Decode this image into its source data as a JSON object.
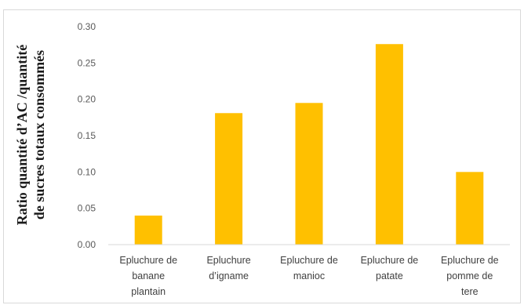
{
  "chart_data": {
    "type": "bar",
    "title": "",
    "xlabel": "",
    "ylabel_lines": [
      "Ratio quantité  d’AC /quantité",
      "de sucres totaux  consommés"
    ],
    "categories": [
      [
        "Epluchure de",
        "banane",
        "plantain"
      ],
      [
        "Epluchure",
        "d’igname"
      ],
      [
        "Epluchure de",
        "manioc"
      ],
      [
        "Epluchure de",
        "patate"
      ],
      [
        "Epluchure de",
        "pomme de",
        "tere"
      ]
    ],
    "values": [
      0.04,
      0.181,
      0.195,
      0.276,
      0.1
    ],
    "ylim": [
      0,
      0.3
    ],
    "yticks": [
      "0.00",
      "0.05",
      "0.10",
      "0.15",
      "0.20",
      "0.25",
      "0.30"
    ],
    "bar_color": "#ffc000",
    "grid": false,
    "legend": "none"
  }
}
